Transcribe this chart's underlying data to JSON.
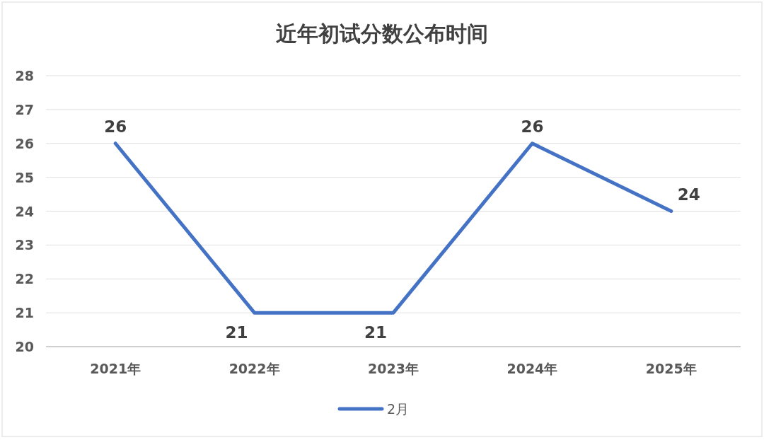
{
  "chart_data": {
    "type": "line",
    "title": "近年初试分数公布时间",
    "categories": [
      "2021年",
      "2022年",
      "2023年",
      "2024年",
      "2025年"
    ],
    "series": [
      {
        "name": "2月",
        "color": "#4472c4",
        "values": [
          26,
          21,
          21,
          26,
          24
        ]
      }
    ],
    "ylim": [
      20,
      28
    ],
    "yticks": [
      20,
      21,
      22,
      23,
      24,
      25,
      26,
      27,
      28
    ],
    "grid": "y",
    "legend": "bottom",
    "data_labels": true,
    "marker": "none",
    "line_style": "solid"
  }
}
